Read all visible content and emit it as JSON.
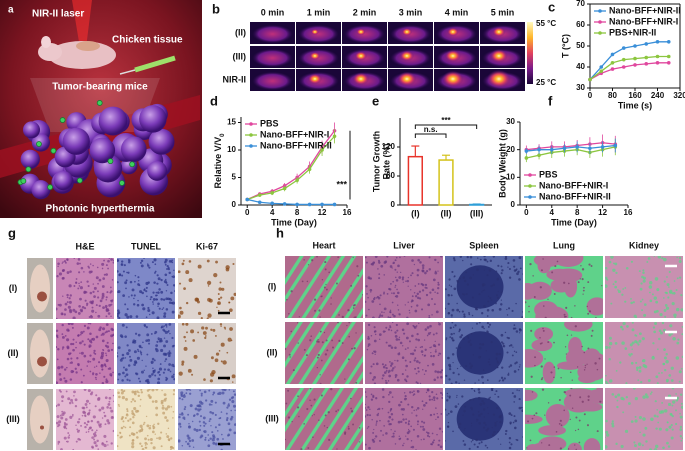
{
  "panels": {
    "a": {
      "label": "a",
      "texts": [
        "NIR-II laser",
        "Chicken tissue",
        "Tumor-bearing mice",
        "Photonic hyperthermia"
      ]
    },
    "b": {
      "label": "b",
      "times": [
        "0 min",
        "1 min",
        "2 min",
        "3 min",
        "4 min",
        "5 min"
      ],
      "rows": [
        "(II)",
        "(III)",
        "NIR-II"
      ],
      "colorbar": [
        "55 °C",
        "25 °C"
      ]
    },
    "g": {
      "label": "g",
      "columns": [
        "H&E",
        "TUNEL",
        "Ki-67"
      ],
      "rows": [
        "(I)",
        "(II)",
        "(III)"
      ]
    },
    "h": {
      "label": "h",
      "columns": [
        "Heart",
        "Liver",
        "Spleen",
        "Lung",
        "Kidney"
      ],
      "rows": [
        "(I)",
        "(II)",
        "(III)"
      ]
    }
  },
  "chart_data": [
    {
      "panel": "c",
      "type": "line",
      "xlabel": "Time (s)",
      "ylabel": "T (°C)",
      "x": [
        0,
        40,
        80,
        120,
        160,
        200,
        240,
        280
      ],
      "xlim": [
        0,
        320
      ],
      "xticks": [
        0,
        80,
        160,
        240,
        320
      ],
      "ylim": [
        30,
        70
      ],
      "yticks": [
        30,
        40,
        50,
        60,
        70
      ],
      "frame": "box",
      "legend": "upper left",
      "series": [
        {
          "name": "Nano-BFF+NIR-II",
          "color": "#3a8fd8",
          "values": [
            34,
            40,
            46,
            49,
            50,
            51,
            52,
            52
          ]
        },
        {
          "name": "Nano-BFF+NIR-I",
          "color": "#e0479e",
          "values": [
            34,
            37,
            39,
            40,
            41,
            41.5,
            42,
            42
          ]
        },
        {
          "name": "PBS+NIR-II",
          "color": "#8cc63f",
          "values": [
            34,
            38,
            42,
            43.5,
            44,
            44.5,
            45,
            45
          ]
        }
      ]
    },
    {
      "panel": "d",
      "type": "line",
      "xlabel": "Time (Day)",
      "ylabel": {
        "text": "Relative V/V",
        "subscript": "0"
      },
      "x": [
        0,
        2,
        4,
        6,
        8,
        10,
        12,
        14
      ],
      "xlim": [
        -1,
        16
      ],
      "xticks": [
        0,
        4,
        8,
        12,
        16
      ],
      "ylim": [
        0,
        16
      ],
      "yticks": [
        0,
        5,
        10,
        15
      ],
      "frame": "axes",
      "legend": "upper left",
      "annotation": "***",
      "series": [
        {
          "name": "PBS",
          "color": "#e0479e",
          "values": [
            1,
            2,
            2.5,
            3.5,
            5,
            7,
            10.5,
            13.5
          ],
          "errors": [
            0.2,
            0.3,
            0.4,
            0.5,
            0.7,
            0.9,
            1.2,
            1.5
          ]
        },
        {
          "name": "Nano-BFF+NIR-I",
          "color": "#8cc63f",
          "values": [
            1,
            1.8,
            2.2,
            3,
            4.5,
            6.5,
            10,
            12.5
          ],
          "errors": [
            0.2,
            0.3,
            0.4,
            0.5,
            0.6,
            0.8,
            1.1,
            1.3
          ]
        },
        {
          "name": "Nano-BFF+NIR-II",
          "color": "#3a8fd8",
          "values": [
            1,
            0.5,
            0.3,
            0.2,
            0.1,
            0.1,
            0.1,
            0.1
          ],
          "errors": [
            0.2,
            0.2,
            0.1,
            0.1,
            0.1,
            0.1,
            0.1,
            0.1
          ]
        }
      ]
    },
    {
      "panel": "e",
      "type": "bar",
      "ylabel": [
        "Tumor Growth",
        "Rate (%)"
      ],
      "categories": [
        "(I)",
        "(II)",
        "(III)"
      ],
      "values": [
        100,
        93,
        1
      ],
      "errors": [
        22,
        10,
        1
      ],
      "colors": [
        "#e8332a",
        "#d4c21a",
        "#2f9fd8"
      ],
      "ylim": [
        0,
        180
      ],
      "yticks": [
        0,
        60,
        120
      ],
      "annotations": [
        "n.s.",
        "***"
      ]
    },
    {
      "panel": "f",
      "type": "line",
      "xlabel": "Time (Day)",
      "ylabel": "Body Weight (g)",
      "x": [
        0,
        2,
        4,
        6,
        8,
        10,
        12,
        14
      ],
      "xlim": [
        -1,
        16
      ],
      "xticks": [
        0,
        4,
        8,
        12,
        16
      ],
      "ylim": [
        0,
        30
      ],
      "yticks": [
        0,
        10,
        20,
        30
      ],
      "frame": "axes",
      "legend": "lower left",
      "series": [
        {
          "name": "PBS",
          "color": "#e0479e",
          "values": [
            20,
            20.5,
            21,
            21,
            21.5,
            22,
            22.5,
            22
          ],
          "errors": [
            1.5,
            1.5,
            2,
            2,
            2,
            2.5,
            3,
            3
          ]
        },
        {
          "name": "Nano-BFF+NIR-I",
          "color": "#8cc63f",
          "values": [
            17,
            18,
            19,
            19.5,
            20,
            19,
            20,
            21
          ],
          "errors": [
            1.5,
            1.5,
            2,
            2,
            2,
            2,
            2.5,
            3
          ]
        },
        {
          "name": "Nano-BFF+NIR-II",
          "color": "#3a8fd8",
          "values": [
            19.5,
            20,
            20,
            20.5,
            21,
            20.5,
            21,
            21.5
          ],
          "errors": [
            1,
            1.5,
            1.5,
            1.5,
            2,
            2,
            2,
            2.5
          ]
        }
      ]
    }
  ]
}
